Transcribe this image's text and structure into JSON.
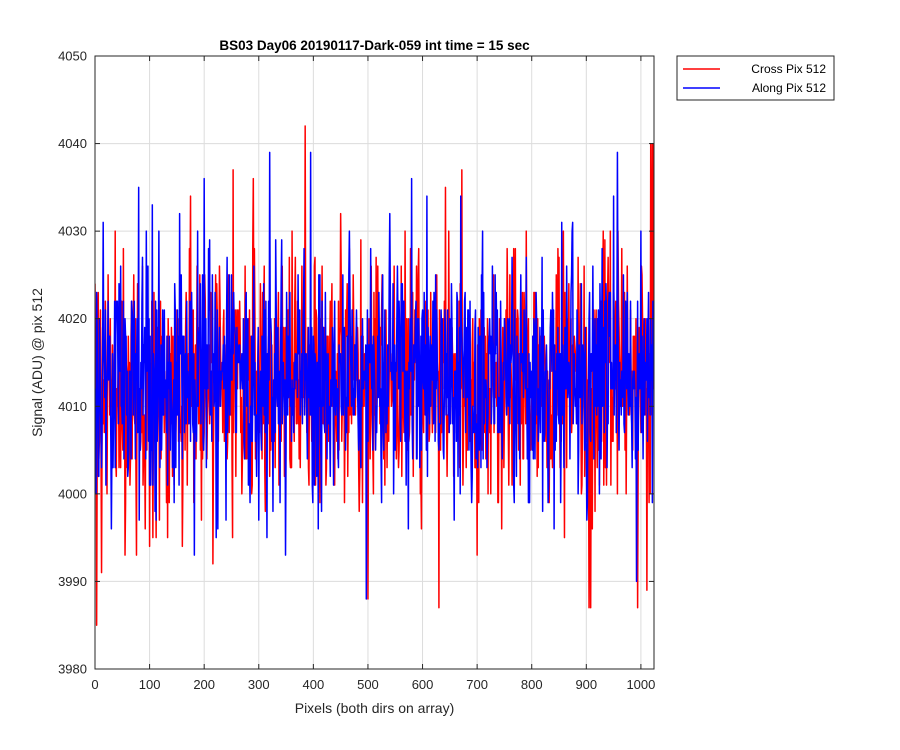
{
  "chart_data": {
    "type": "line",
    "title": "BS03 Day06 20190117-Dark-059 int time = 15 sec",
    "xlabel": "Pixels (both dirs on array)",
    "ylabel": "Signal (ADU) @ pix 512",
    "xlim": [
      0,
      1024
    ],
    "ylim": [
      3980,
      4050
    ],
    "xticks": [
      0,
      100,
      200,
      300,
      400,
      500,
      600,
      700,
      800,
      900,
      1000
    ],
    "yticks": [
      3980,
      3990,
      4000,
      4010,
      4020,
      4030,
      4040,
      4050
    ],
    "grid": true,
    "legend_position": "outside-top-right",
    "series": [
      {
        "name": "Cross Pix 512",
        "color": "#ff0000",
        "noise": {
          "count": 1024,
          "mean": 4013,
          "std": 7,
          "seed": 11
        },
        "points": [
          [
            0,
            4024
          ],
          [
            3,
            3985
          ],
          [
            8,
            4006
          ],
          [
            12,
            3991
          ],
          [
            55,
            3993
          ],
          [
            76,
            3993
          ],
          [
            100,
            3994
          ],
          [
            160,
            3994
          ],
          [
            175,
            4034
          ],
          [
            216,
            3992
          ],
          [
            253,
            4037
          ],
          [
            290,
            4036
          ],
          [
            312,
            3998
          ],
          [
            360,
            4003
          ],
          [
            385,
            4042
          ],
          [
            400,
            4007
          ],
          [
            450,
            4032
          ],
          [
            500,
            3988
          ],
          [
            533,
            4021
          ],
          [
            568,
            4030
          ],
          [
            598,
            3996
          ],
          [
            612,
            4006
          ],
          [
            630,
            3987
          ],
          [
            642,
            4035
          ],
          [
            672,
            4037
          ],
          [
            700,
            3993
          ],
          [
            745,
            3996
          ],
          [
            790,
            4030
          ],
          [
            838,
            4003
          ],
          [
            860,
            3995
          ],
          [
            900,
            4019
          ],
          [
            905,
            3987
          ],
          [
            908,
            3987
          ],
          [
            940,
            4027
          ],
          [
            958,
            4030
          ],
          [
            973,
            4000
          ],
          [
            994,
            3987
          ],
          [
            1011,
            3989
          ],
          [
            1018,
            4040
          ],
          [
            1021,
            4040
          ],
          [
            1023,
            4040
          ]
        ]
      },
      {
        "name": "Along Pix 512",
        "color": "#0000ff",
        "noise": {
          "count": 1024,
          "mean": 4013,
          "std": 7,
          "seed": 29
        },
        "points": [
          [
            0,
            4012
          ],
          [
            15,
            4031
          ],
          [
            30,
            3996
          ],
          [
            80,
            4035
          ],
          [
            105,
            4033
          ],
          [
            110,
            3998
          ],
          [
            155,
            4032
          ],
          [
            182,
            3993
          ],
          [
            200,
            4036
          ],
          [
            225,
            3996
          ],
          [
            300,
            3997
          ],
          [
            320,
            4039
          ],
          [
            349,
            3993
          ],
          [
            395,
            4039
          ],
          [
            415,
            3998
          ],
          [
            497,
            3988
          ],
          [
            540,
            4032
          ],
          [
            580,
            4036
          ],
          [
            608,
            4034
          ],
          [
            670,
            4034
          ],
          [
            710,
            4030
          ],
          [
            790,
            4027
          ],
          [
            820,
            3998
          ],
          [
            855,
            4031
          ],
          [
            875,
            4031
          ],
          [
            950,
            4034
          ],
          [
            957,
            4039
          ],
          [
            992,
            3990
          ],
          [
            1000,
            4030
          ],
          [
            1023,
            4017
          ]
        ]
      }
    ]
  }
}
